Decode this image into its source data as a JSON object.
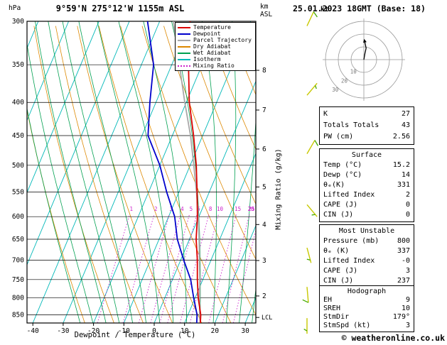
{
  "header": {
    "pressure_unit": "hPa",
    "title": "9°59'N 275°12'W 1155m ASL",
    "datetime": "25.01.2023 18GMT (Base: 18)",
    "altitude_unit_line1": "km",
    "altitude_unit_line2": "ASL"
  },
  "legend": [
    {
      "label": "Temperature",
      "color": "#dd0000",
      "style": "solid"
    },
    {
      "label": "Dewpoint",
      "color": "#0000cc",
      "style": "solid"
    },
    {
      "label": "Parcel Trajectory",
      "color": "#a8a8a8",
      "style": "solid"
    },
    {
      "label": "Dry Adiabat",
      "color": "#dd8800",
      "style": "solid"
    },
    {
      "label": "Wet Adiabat",
      "color": "#00a050",
      "style": "solid"
    },
    {
      "label": "Isotherm",
      "color": "#00b8b8",
      "style": "solid"
    },
    {
      "label": "Mixing Ratio",
      "color": "#cc22cc",
      "style": "dotted"
    }
  ],
  "axes": {
    "pressure_ticks": [
      300,
      350,
      400,
      450,
      500,
      550,
      600,
      650,
      700,
      750,
      800,
      850
    ],
    "temp_ticks": [
      -40,
      -30,
      -20,
      -10,
      0,
      10,
      20,
      30
    ],
    "xlabel": "Dewpoint / Temperature (°C)",
    "km_ticks": [
      8,
      7,
      6,
      5,
      4,
      3,
      2
    ],
    "mixing_ratio_axis_label": "Mixing Ratio (g/kg)"
  },
  "chart_data": {
    "type": "line",
    "title": "Skew-T log-P sounding",
    "pressure_range_hpa": [
      875,
      300
    ],
    "temp_axis_range_c": [
      -45,
      33
    ],
    "series": [
      {
        "name": "Temperature",
        "pressure_hpa": [
          875,
          850,
          800,
          750,
          700,
          650,
          600,
          550,
          500,
          450,
          400,
          350,
          300
        ],
        "temp_c": [
          15.2,
          14.2,
          11.0,
          8.2,
          5.5,
          2.2,
          -0.5,
          -4.0,
          -8.0,
          -13.0,
          -19.0,
          -24.5,
          -30.0
        ]
      },
      {
        "name": "Dewpoint",
        "pressure_hpa": [
          875,
          850,
          800,
          750,
          700,
          650,
          600,
          550,
          500,
          450,
          400,
          350,
          300
        ],
        "temp_c": [
          14.0,
          13.0,
          9.5,
          6.0,
          1.0,
          -4.0,
          -8.0,
          -14.0,
          -20.0,
          -28.0,
          -32.0,
          -36.0,
          -44.0
        ]
      },
      {
        "name": "Parcel Trajectory",
        "pressure_hpa": [
          875,
          850,
          800,
          750,
          700,
          650,
          600,
          550,
          500,
          450,
          400,
          350,
          300
        ],
        "temp_c": [
          15.2,
          13.8,
          11.5,
          9.0,
          6.2,
          3.2,
          -0.2,
          -4.2,
          -8.8,
          -14.0,
          -20.5,
          -27.5,
          -35.5
        ]
      }
    ],
    "background": {
      "isotherm_step_c": 10,
      "dry_adiabat_theta_k": {
        "from": 260,
        "to": 460,
        "step": 10
      },
      "wet_adiabat_thetaw_c": {
        "from": -16,
        "to": 36,
        "step": 4
      },
      "mixing_ratio_gkg": [
        1,
        2,
        3,
        4,
        5,
        6,
        8,
        10,
        15,
        20,
        25
      ]
    },
    "lcl": {
      "label": "LCL",
      "pressure_hpa": 858
    },
    "wind_barbs": [
      {
        "pressure_hpa": 305,
        "speed_kt": 10,
        "dir_deg": 25
      },
      {
        "pressure_hpa": 390,
        "speed_kt": 5,
        "dir_deg": 40
      },
      {
        "pressure_hpa": 480,
        "speed_kt": 10,
        "dir_deg": 30
      },
      {
        "pressure_hpa": 575,
        "speed_kt": 5,
        "dir_deg": 140
      },
      {
        "pressure_hpa": 670,
        "speed_kt": 5,
        "dir_deg": 165
      },
      {
        "pressure_hpa": 770,
        "speed_kt": 10,
        "dir_deg": 175
      },
      {
        "pressure_hpa": 860,
        "speed_kt": 5,
        "dir_deg": 180
      }
    ]
  },
  "hodograph": {
    "unit": "kt",
    "rings_kt": [
      10,
      20,
      30
    ],
    "trace_uv_kt": [
      [
        0,
        0
      ],
      [
        0.8,
        4.5
      ],
      [
        1.8,
        9.0
      ],
      [
        0.8,
        13.5
      ]
    ]
  },
  "tables": {
    "indices": {
      "rows": [
        {
          "label": "K",
          "value": "27"
        },
        {
          "label": "Totals Totals",
          "value": "43"
        },
        {
          "label": "PW (cm)",
          "value": "2.56"
        }
      ]
    },
    "surface": {
      "title": "Surface",
      "rows": [
        {
          "label": "Temp (°C)",
          "value": "15.2"
        },
        {
          "label": "Dewp (°C)",
          "value": "14"
        },
        {
          "label": "θₑ(K)",
          "value": "331"
        },
        {
          "label": "Lifted Index",
          "value": "2"
        },
        {
          "label": "CAPE (J)",
          "value": "0"
        },
        {
          "label": "CIN (J)",
          "value": "0"
        }
      ]
    },
    "most_unstable": {
      "title": "Most Unstable",
      "rows": [
        {
          "label": "Pressure (mb)",
          "value": "800"
        },
        {
          "label": "θₑ (K)",
          "value": "337"
        },
        {
          "label": "Lifted Index",
          "value": "-0"
        },
        {
          "label": "CAPE (J)",
          "value": "3"
        },
        {
          "label": "CIN (J)",
          "value": "237"
        }
      ]
    },
    "hodograph": {
      "title": "Hodograph",
      "rows": [
        {
          "label": "EH",
          "value": "9"
        },
        {
          "label": "SREH",
          "value": "10"
        },
        {
          "label": "StmDir",
          "value": "179°"
        },
        {
          "label": "StmSpd (kt)",
          "value": "3"
        }
      ]
    }
  },
  "footer": {
    "copyright": "© weatheronline.co.uk"
  }
}
